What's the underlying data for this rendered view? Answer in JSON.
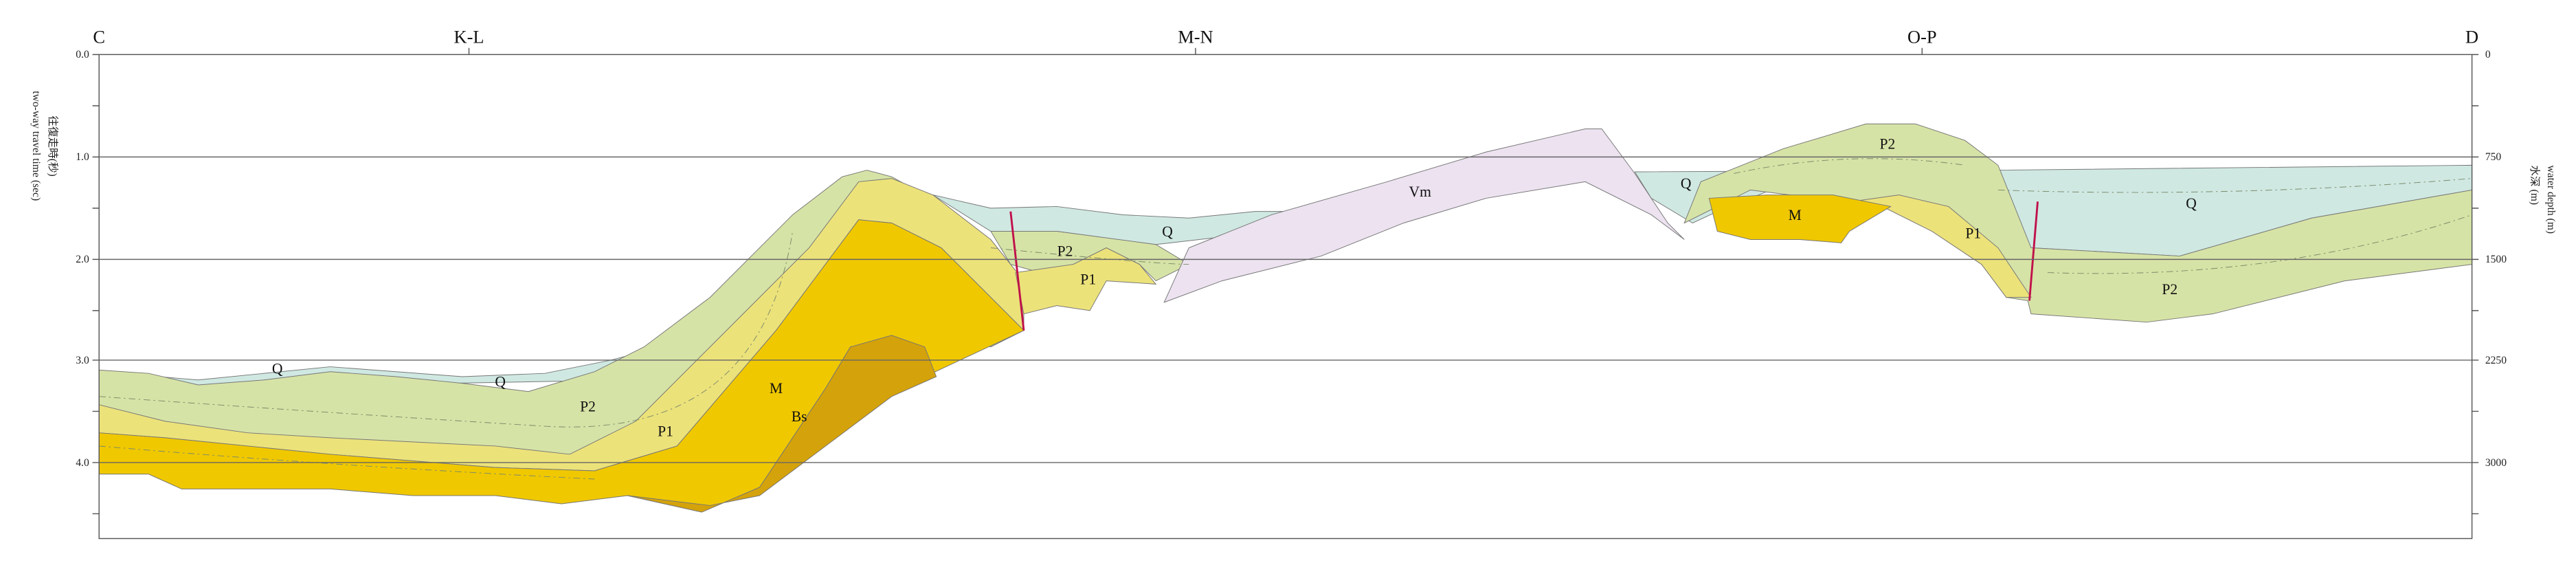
{
  "top_labels": [
    "C",
    "K-L",
    "M-N",
    "O-P",
    "D"
  ],
  "left_axis": {
    "title_en": "two-way travel time (sec)",
    "title_ja": "往復走時(秒)",
    "ticks": [
      "0.0",
      "1.0",
      "2.0",
      "3.0",
      "4.0"
    ]
  },
  "right_axis": {
    "title_ja": "水深 (m)",
    "title_en": "water depth (m)",
    "ticks": [
      "0",
      "750",
      "1500",
      "2250",
      "3000"
    ]
  },
  "unit_labels": [
    "Q",
    "Q",
    "P2",
    "P1",
    "M",
    "Bs",
    "P2",
    "P1",
    "Q",
    "Vm",
    "Q",
    "P2",
    "M",
    "P1",
    "Q",
    "P2"
  ]
}
